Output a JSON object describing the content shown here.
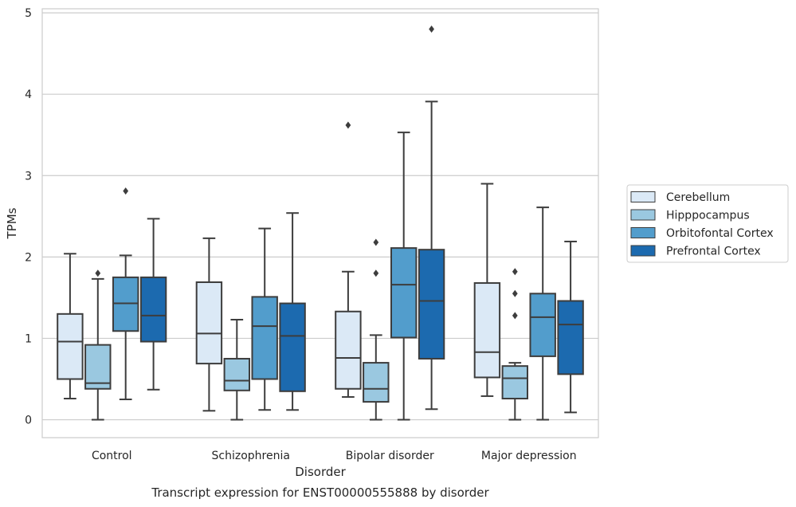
{
  "chart_data": {
    "type": "box",
    "caption": "Transcript expression for ENST00000555888 by disorder",
    "xlabel": "Disorder",
    "ylabel": "TPMs",
    "ylim": [
      -0.22,
      5.05
    ],
    "yticks": [
      0,
      1,
      2,
      3,
      4,
      5
    ],
    "grid": "horizontal",
    "legend_position": "right",
    "categories": [
      "Control",
      "Schizophrenia",
      "Bipolar disorder",
      "Major depression"
    ],
    "series": [
      {
        "name": "Cerebellum",
        "color": "#dbe9f6",
        "boxes": [
          {
            "min": 0.26,
            "q1": 0.5,
            "median": 0.96,
            "q3": 1.3,
            "max": 2.04,
            "outliers": []
          },
          {
            "min": 0.11,
            "q1": 0.69,
            "median": 1.06,
            "q3": 1.69,
            "max": 2.23,
            "outliers": []
          },
          {
            "min": 0.28,
            "q1": 0.38,
            "median": 0.76,
            "q3": 1.33,
            "max": 1.82,
            "outliers": [
              3.62
            ]
          },
          {
            "min": 0.29,
            "q1": 0.52,
            "median": 0.83,
            "q3": 1.68,
            "max": 2.9,
            "outliers": []
          }
        ]
      },
      {
        "name": "Hipppocampus",
        "color": "#9ac8e0",
        "boxes": [
          {
            "min": 0.0,
            "q1": 0.38,
            "median": 0.45,
            "q3": 0.92,
            "max": 1.73,
            "outliers": [
              1.8
            ]
          },
          {
            "min": 0.0,
            "q1": 0.36,
            "median": 0.48,
            "q3": 0.75,
            "max": 1.23,
            "outliers": []
          },
          {
            "min": 0.0,
            "q1": 0.22,
            "median": 0.38,
            "q3": 0.7,
            "max": 1.04,
            "outliers": [
              1.8,
              2.18
            ]
          },
          {
            "min": 0.0,
            "q1": 0.26,
            "median": 0.51,
            "q3": 0.66,
            "max": 0.7,
            "outliers": [
              1.28,
              1.55,
              1.82
            ]
          }
        ]
      },
      {
        "name": "Orbitofontal Cortex",
        "color": "#529dcc",
        "boxes": [
          {
            "min": 0.25,
            "q1": 1.09,
            "median": 1.43,
            "q3": 1.75,
            "max": 2.02,
            "outliers": [
              2.81
            ]
          },
          {
            "min": 0.12,
            "q1": 0.5,
            "median": 1.15,
            "q3": 1.51,
            "max": 2.35,
            "outliers": []
          },
          {
            "min": 0.0,
            "q1": 1.01,
            "median": 1.66,
            "q3": 2.11,
            "max": 3.53,
            "outliers": []
          },
          {
            "min": 0.0,
            "q1": 0.78,
            "median": 1.26,
            "q3": 1.55,
            "max": 2.61,
            "outliers": []
          }
        ]
      },
      {
        "name": "Prefrontal Cortex",
        "color": "#1c6aaf",
        "boxes": [
          {
            "min": 0.37,
            "q1": 0.96,
            "median": 1.28,
            "q3": 1.75,
            "max": 2.47,
            "outliers": []
          },
          {
            "min": 0.12,
            "q1": 0.35,
            "median": 1.03,
            "q3": 1.43,
            "max": 2.54,
            "outliers": []
          },
          {
            "min": 0.13,
            "q1": 0.75,
            "median": 1.46,
            "q3": 2.09,
            "max": 3.91,
            "outliers": [
              4.8
            ]
          },
          {
            "min": 0.09,
            "q1": 0.56,
            "median": 1.17,
            "q3": 1.46,
            "max": 2.19,
            "outliers": []
          }
        ]
      }
    ]
  }
}
